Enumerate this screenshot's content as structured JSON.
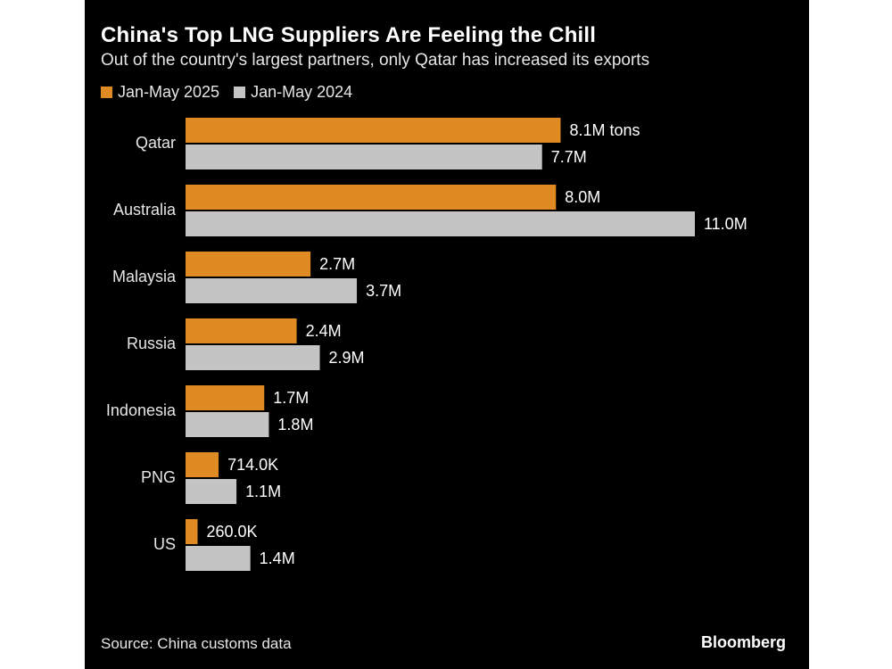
{
  "title": "China's Top LNG Suppliers Are Feeling the Chill",
  "subtitle": "Out of the country's largest partners, only Qatar has increased its exports",
  "source": "Source: China customs data",
  "brand": "Bloomberg",
  "colors": {
    "background": "#000000",
    "series_2025": "#e08a24",
    "series_2024": "#c4c4c4",
    "text": "#ffffff"
  },
  "chart_data": {
    "type": "bar",
    "orientation": "horizontal",
    "unit": "million tons",
    "categories": [
      "Qatar",
      "Australia",
      "Malaysia",
      "Russia",
      "Indonesia",
      "PNG",
      "US"
    ],
    "series": [
      {
        "name": "Jan-May 2025",
        "color": "#e08a24",
        "values": [
          8.1,
          8.0,
          2.7,
          2.4,
          1.7,
          0.714,
          0.26
        ],
        "labels": [
          "8.1M tons",
          "8.0M",
          "2.7M",
          "2.4M",
          "1.7M",
          "714.0K",
          "260.0K"
        ]
      },
      {
        "name": "Jan-May 2024",
        "color": "#c4c4c4",
        "values": [
          7.7,
          11.0,
          3.7,
          2.9,
          1.8,
          1.1,
          1.4
        ],
        "labels": [
          "7.7M",
          "11.0M",
          "3.7M",
          "2.9M",
          "1.8M",
          "1.1M",
          "1.4M"
        ]
      }
    ],
    "xlim": [
      0,
      11.0
    ],
    "grid": false,
    "legend_position": "top-left"
  }
}
